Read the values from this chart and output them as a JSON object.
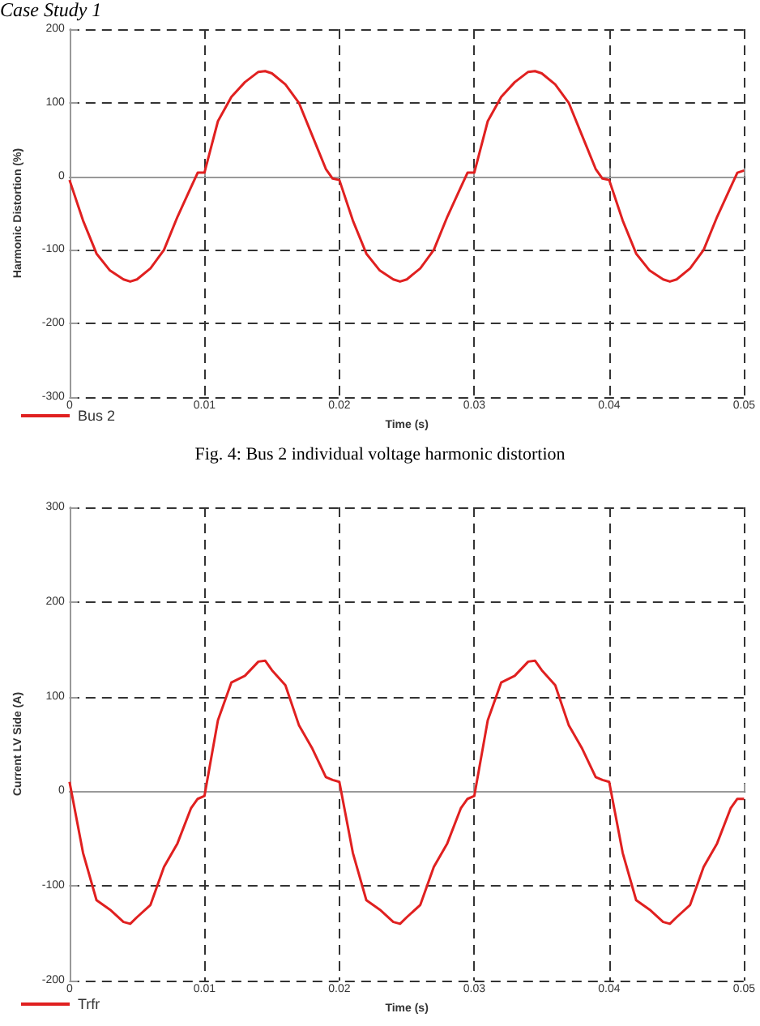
{
  "chart_data": [
    {
      "type": "line",
      "title": "Case Study 1",
      "xlabel": "Time (s)",
      "ylabel": "Harmonic Distortion (%)",
      "annotations": [
        "Fig. 4: Bus 2 individual voltage harmonic distortion"
      ],
      "x": [
        0,
        0.001,
        0.002,
        0.003,
        0.004,
        0.0045,
        0.005,
        0.006,
        0.007,
        0.008,
        0.009,
        0.0095,
        0.01,
        0.011,
        0.012,
        0.013,
        0.014,
        0.0145,
        0.015,
        0.016,
        0.017,
        0.018,
        0.019,
        0.0195,
        0.02,
        0.021,
        0.022,
        0.023,
        0.024,
        0.0245,
        0.025,
        0.026,
        0.027,
        0.028,
        0.029,
        0.0295,
        0.03,
        0.031,
        0.032,
        0.033,
        0.034,
        0.0345,
        0.035,
        0.036,
        0.037,
        0.038,
        0.039,
        0.0395,
        0.04,
        0.041,
        0.042,
        0.043,
        0.044,
        0.0445,
        0.045,
        0.046,
        0.047,
        0.048,
        0.049,
        0.0495,
        0.05
      ],
      "series": [
        {
          "name": "Bus 2",
          "color": "#e02020",
          "values": [
            -5,
            -60,
            -105,
            -128,
            -140,
            -143,
            -140,
            -125,
            -100,
            -55,
            -15,
            5,
            5,
            75,
            108,
            128,
            142,
            143,
            140,
            125,
            100,
            55,
            10,
            -3,
            -5,
            -60,
            -105,
            -128,
            -140,
            -143,
            -140,
            -125,
            -100,
            -55,
            -15,
            5,
            5,
            75,
            108,
            128,
            142,
            143,
            140,
            125,
            100,
            55,
            10,
            -3,
            -5,
            -60,
            -105,
            -128,
            -140,
            -143,
            -140,
            -125,
            -100,
            -55,
            -15,
            5,
            8
          ]
        }
      ],
      "xlim": [
        0,
        0.05
      ],
      "xticks": [
        0,
        0.01,
        0.02,
        0.03,
        0.04,
        0.05
      ],
      "ylim": [
        -300,
        200
      ],
      "yticks": [
        -300,
        -200,
        -100,
        0,
        100,
        200
      ],
      "grid": true,
      "legend": "bottom left",
      "line_style": "solid"
    },
    {
      "type": "line",
      "xlabel": "Time (s)",
      "ylabel": "Current LV Side (A)",
      "x": [
        0,
        0.001,
        0.002,
        0.003,
        0.004,
        0.0045,
        0.005,
        0.006,
        0.007,
        0.008,
        0.009,
        0.0095,
        0.01,
        0.011,
        0.012,
        0.013,
        0.014,
        0.0145,
        0.015,
        0.016,
        0.017,
        0.018,
        0.019,
        0.0195,
        0.02,
        0.021,
        0.022,
        0.023,
        0.024,
        0.0245,
        0.025,
        0.026,
        0.027,
        0.028,
        0.029,
        0.0295,
        0.03,
        0.031,
        0.032,
        0.033,
        0.034,
        0.0345,
        0.035,
        0.036,
        0.037,
        0.038,
        0.039,
        0.0395,
        0.04,
        0.041,
        0.042,
        0.043,
        0.044,
        0.0445,
        0.045,
        0.046,
        0.047,
        0.048,
        0.049,
        0.0495,
        0.05
      ],
      "series": [
        {
          "name": "Trfr",
          "color": "#e02020",
          "values": [
            10,
            -65,
            -115,
            -125,
            -138,
            -140,
            -133,
            -120,
            -80,
            -55,
            -18,
            -8,
            -5,
            75,
            115,
            122,
            137,
            138,
            128,
            112,
            70,
            45,
            15,
            12,
            10,
            -65,
            -115,
            -125,
            -138,
            -140,
            -133,
            -120,
            -80,
            -55,
            -18,
            -8,
            -5,
            75,
            115,
            122,
            137,
            138,
            128,
            112,
            70,
            45,
            15,
            12,
            10,
            -65,
            -115,
            -125,
            -138,
            -140,
            -133,
            -120,
            -80,
            -55,
            -18,
            -8,
            -8
          ]
        }
      ],
      "xlim": [
        0,
        0.05
      ],
      "xticks": [
        0,
        0.01,
        0.02,
        0.03,
        0.04,
        0.05
      ],
      "ylim": [
        -200,
        300
      ],
      "yticks": [
        -200,
        -100,
        0,
        100,
        200,
        300
      ],
      "grid": true,
      "legend": "bottom left",
      "line_style": "solid"
    }
  ]
}
